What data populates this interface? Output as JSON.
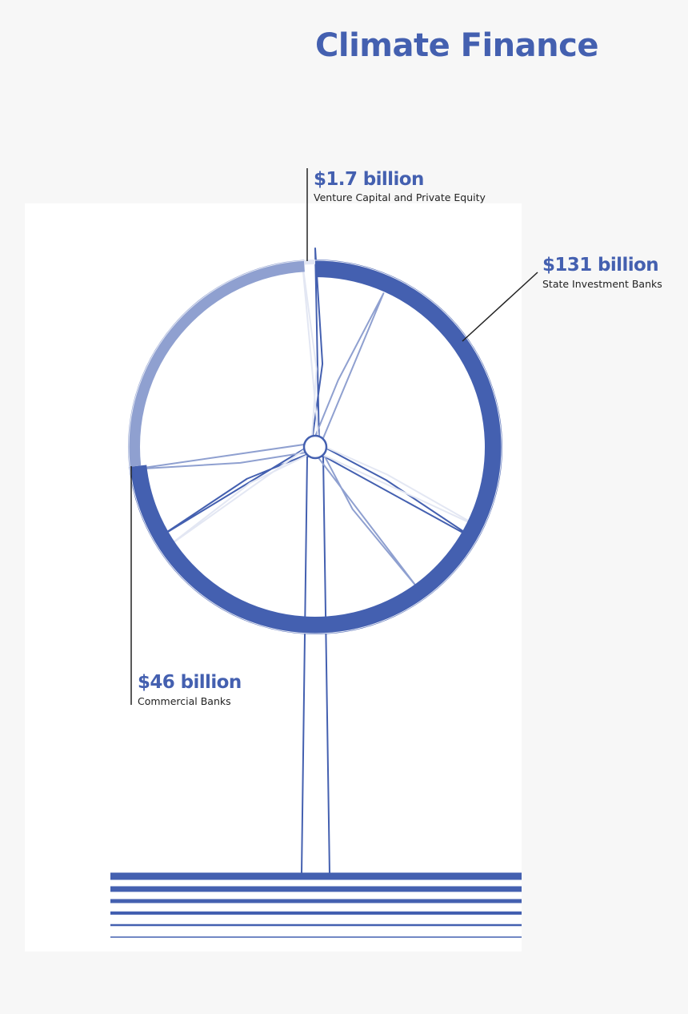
{
  "title": "Climate Finance",
  "chart_data": {
    "type": "pie",
    "slices": [
      {
        "label": "State Investment Banks",
        "value": 131,
        "value_text": "$131 billion",
        "color": "#4460b0"
      },
      {
        "label": "Commercial Banks",
        "value": 46,
        "value_text": "$46 billion",
        "color": "#8fa0d0"
      },
      {
        "label": "Venture Capital and Private Equity",
        "value": 1.7,
        "value_text": "$1.7 billion",
        "color": "#e3e7f3"
      }
    ],
    "unit": "billion USD",
    "legend": "none"
  },
  "colors": {
    "accent": "#4460b0",
    "accent_light": "#8fa0d0",
    "accent_faint": "#e3e7f3",
    "text": "#222222",
    "background": "#f7f7f7",
    "panel": "#ffffff"
  }
}
